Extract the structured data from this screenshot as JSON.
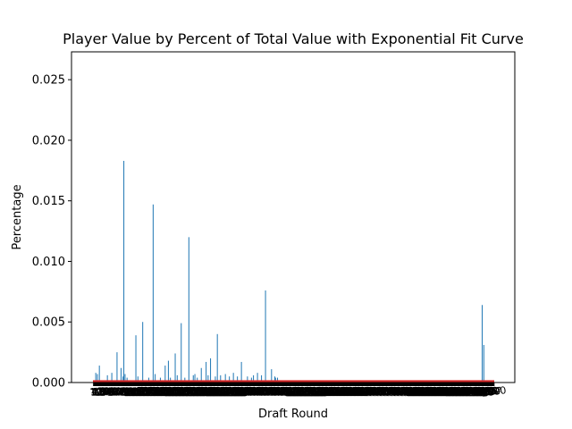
{
  "chart_data": {
    "type": "bar",
    "title": "Player Value by Percent of Total Value with Exponential Fit Curve",
    "xlabel": "Draft Round",
    "ylabel": "Percentage",
    "ylim": [
      0,
      0.0273
    ],
    "xlim": [
      0,
      1000
    ],
    "grid": false,
    "bar_color": "#1f77b4",
    "fit_color": "#d62728",
    "yticks": [
      {
        "value": 0.0,
        "label": "0.000"
      },
      {
        "value": 0.005,
        "label": "0.005"
      },
      {
        "value": 0.01,
        "label": "0.010"
      },
      {
        "value": 0.015,
        "label": "0.015"
      },
      {
        "value": 0.02,
        "label": "0.020"
      },
      {
        "value": 0.025,
        "label": "0.025"
      }
    ],
    "series": [
      {
        "type": "bar",
        "x": [
          7,
          11,
          16,
          36,
          47,
          60,
          70,
          75,
          77,
          80,
          85,
          107,
          112,
          124,
          139,
          150,
          155,
          168,
          180,
          188,
          193,
          205,
          210,
          220,
          229,
          239,
          250,
          254,
          260,
          270,
          282,
          287,
          293,
          305,
          310,
          318,
          330,
          340,
          350,
          360,
          370,
          385,
          395,
          400,
          410,
          420,
          430,
          445,
          453,
          455,
          460,
          970,
          974
        ],
        "values": [
          0.0008,
          0.0007,
          0.0014,
          0.0006,
          0.0008,
          0.0025,
          0.0012,
          0.0005,
          0.0183,
          0.0007,
          0.0004,
          0.0039,
          0.0005,
          0.005,
          0.0004,
          0.0147,
          0.0007,
          0.0004,
          0.0014,
          0.0018,
          0.0004,
          0.0024,
          0.0006,
          0.0049,
          0.0004,
          0.012,
          0.0006,
          0.0007,
          0.0004,
          0.0012,
          0.0017,
          0.0006,
          0.002,
          0.0005,
          0.004,
          0.0006,
          0.0007,
          0.0005,
          0.0008,
          0.0005,
          0.0017,
          0.0005,
          0.0004,
          0.0006,
          0.0008,
          0.0006,
          0.0076,
          0.0011,
          0.0005,
          0.0004,
          0.0004,
          0.0064,
          0.0031
        ]
      },
      {
        "type": "line",
        "x": [
          0,
          1000
        ],
        "values": [
          3e-05,
          3e-05
        ]
      }
    ]
  }
}
